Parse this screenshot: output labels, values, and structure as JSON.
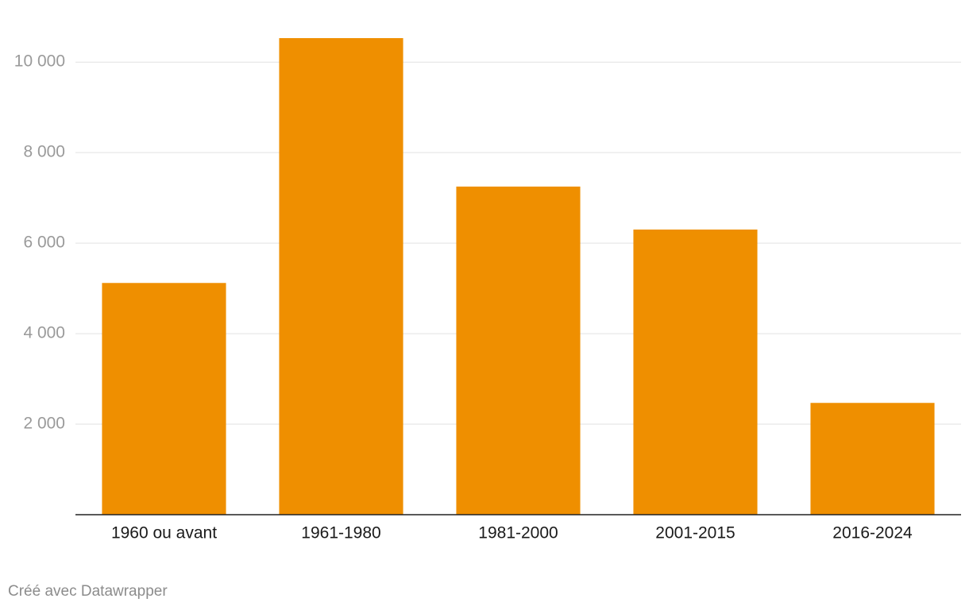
{
  "chart_data": {
    "type": "bar",
    "categories": [
      "1960 ou avant",
      "1961-1980",
      "1981-2000",
      "2001-2015",
      "2016-2024"
    ],
    "values": [
      5120,
      10530,
      7250,
      6300,
      2470
    ],
    "color": "#ef8f00",
    "ylim": [
      0,
      10600
    ],
    "yticks": [
      {
        "value": 2000,
        "label": "2 000"
      },
      {
        "value": 4000,
        "label": "4 000"
      },
      {
        "value": 6000,
        "label": "6 000"
      },
      {
        "value": 8000,
        "label": "8 000"
      },
      {
        "value": 10000,
        "label": "10 000"
      }
    ],
    "grid": true,
    "credit": "Créé avec Datawrapper"
  }
}
